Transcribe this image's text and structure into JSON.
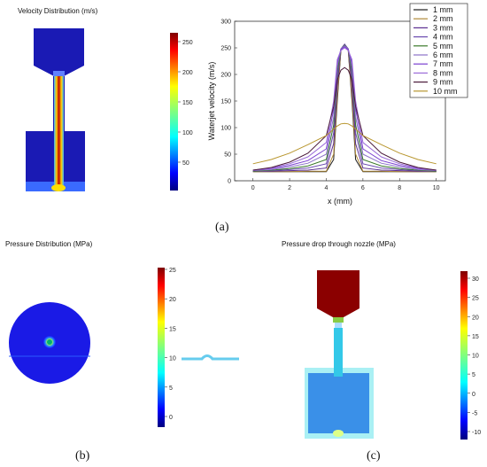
{
  "panel_a": {
    "contour_title": "Velocity Distribution (m/s)",
    "colorbar_ticks": [
      "250",
      "200",
      "150",
      "100",
      "50"
    ],
    "caption": "(a)"
  },
  "panel_b": {
    "title": "Pressure Distribution (MPa)",
    "colorbar_ticks": [
      "25",
      "20",
      "15",
      "10",
      "5",
      "0"
    ],
    "caption": "(b)"
  },
  "panel_c": {
    "title": "Pressure drop through nozzle (MPa)",
    "colorbar_ticks": [
      "30",
      "25",
      "20",
      "15",
      "10",
      "5",
      "0",
      "-5",
      "-10"
    ],
    "caption": "(c)"
  },
  "chart_data": {
    "type": "line",
    "xlabel": "x (mm)",
    "ylabel": "Waterjet velocity (m/s)",
    "xlim": [
      -1,
      10.5
    ],
    "ylim": [
      0,
      300
    ],
    "xticks": [
      0,
      2,
      4,
      6,
      8,
      10
    ],
    "yticks": [
      0,
      50,
      100,
      150,
      200,
      250,
      300
    ],
    "legend_position": "top-right",
    "x": [
      0,
      1,
      2,
      3,
      4,
      4.4,
      4.6,
      4.8,
      5,
      5.2,
      5.4,
      5.6,
      6,
      7,
      8,
      9,
      10
    ],
    "series": [
      {
        "name": "1 mm",
        "color": "#1a1a1a",
        "values": [
          17,
          17,
          17,
          17,
          17,
          40,
          150,
          245,
          255,
          245,
          150,
          40,
          17,
          17,
          17,
          17,
          17
        ]
      },
      {
        "name": "2 mm",
        "color": "#b08a3a",
        "values": [
          17,
          17,
          17,
          18,
          18,
          50,
          160,
          246,
          256,
          246,
          160,
          50,
          18,
          18,
          17,
          17,
          17
        ]
      },
      {
        "name": "3 mm",
        "color": "#5a2d91",
        "values": [
          18,
          18,
          19,
          20,
          24,
          70,
          180,
          248,
          257,
          248,
          180,
          70,
          24,
          20,
          19,
          18,
          18
        ]
      },
      {
        "name": "4 mm",
        "color": "#6b4bb0",
        "values": [
          18,
          19,
          21,
          24,
          32,
          90,
          195,
          248,
          256,
          248,
          195,
          90,
          32,
          24,
          21,
          19,
          18
        ]
      },
      {
        "name": "5 mm",
        "color": "#3b7a2a",
        "values": [
          18,
          20,
          23,
          28,
          40,
          105,
          205,
          248,
          255,
          248,
          205,
          105,
          40,
          28,
          23,
          20,
          18
        ]
      },
      {
        "name": "6 mm",
        "color": "#8c72c8",
        "values": [
          19,
          21,
          26,
          33,
          50,
          120,
          215,
          248,
          254,
          248,
          215,
          120,
          50,
          33,
          26,
          21,
          19
        ]
      },
      {
        "name": "7 mm",
        "color": "#7a3fd0",
        "values": [
          20,
          23,
          29,
          38,
          60,
          135,
          222,
          247,
          252,
          247,
          222,
          135,
          60,
          38,
          29,
          23,
          20
        ]
      },
      {
        "name": "8 mm",
        "color": "#9b6bd8",
        "values": [
          20,
          24,
          32,
          45,
          72,
          150,
          228,
          245,
          250,
          245,
          228,
          150,
          72,
          45,
          32,
          24,
          20
        ]
      },
      {
        "name": "9 mm",
        "color": "#4a1a3a",
        "values": [
          20,
          25,
          35,
          52,
          85,
          140,
          190,
          208,
          213,
          208,
          190,
          140,
          85,
          52,
          35,
          25,
          20
        ]
      },
      {
        "name": "10 mm",
        "color": "#b8962e",
        "values": [
          32,
          40,
          52,
          68,
          85,
          97,
          103,
          107,
          108,
          107,
          103,
          97,
          85,
          68,
          52,
          40,
          32
        ]
      }
    ]
  }
}
